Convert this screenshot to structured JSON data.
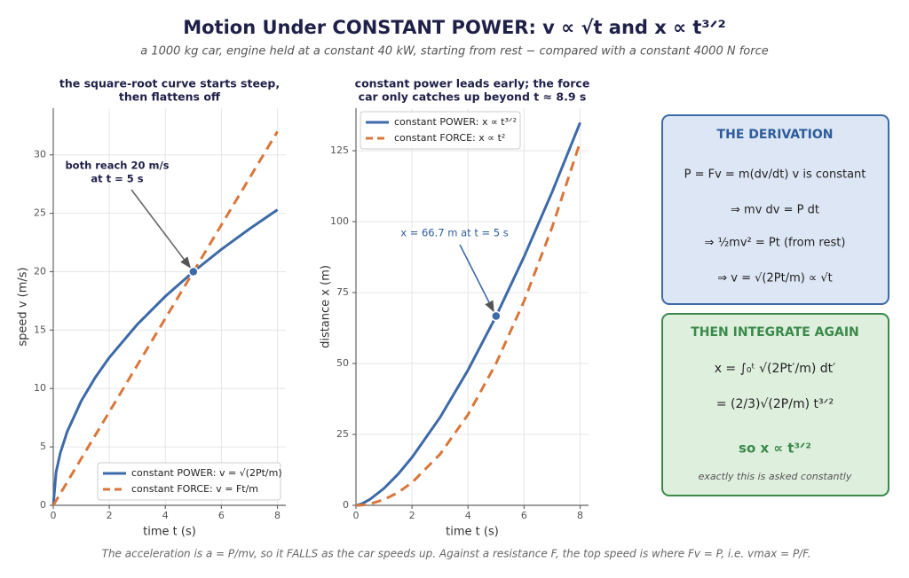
{
  "title": "Motion Under CONSTANT POWER:  v ∝ √t  and  x ∝ t³ᐟ²",
  "subtitle": "a 1000 kg car, engine held at a constant 40 kW, starting from rest − compared with a constant 4000 N force",
  "chart_data": [
    {
      "type": "line",
      "title": [
        "the square-root curve starts steep,",
        "then flattens off"
      ],
      "x_label": "time  t  (s)",
      "y_label": "speed  v  (m/s)",
      "x": [
        0,
        0.1,
        0.25,
        0.5,
        1,
        1.5,
        2,
        3,
        4,
        5,
        6,
        7,
        8
      ],
      "series": [
        {
          "name": "constant POWER:  v = √(2Pt/m)",
          "color": "#3d6aa8",
          "dash": false,
          "values": [
            0,
            2.83,
            4.47,
            6.32,
            8.94,
            10.95,
            12.65,
            15.49,
            17.89,
            20,
            21.91,
            23.66,
            25.3
          ]
        },
        {
          "name": "constant FORCE:  v = Ft/m",
          "color": "#d9773b",
          "dash": true,
          "values": [
            0,
            0.4,
            1,
            2,
            4,
            6,
            8,
            12,
            16,
            20,
            24,
            28,
            32
          ]
        }
      ],
      "point": {
        "x": 5,
        "y": 20
      },
      "annotation": [
        "both reach 20 m/s",
        "at t = 5 s"
      ],
      "xlim": [
        0,
        8.3
      ],
      "xticks": [
        0,
        2,
        4,
        6,
        8
      ],
      "ylim": [
        0,
        34
      ],
      "yticks": [
        0,
        5,
        10,
        15,
        20,
        25,
        30
      ],
      "grid": true,
      "legend": "lower right"
    },
    {
      "type": "line",
      "title": [
        "constant power leads early;  the force",
        "car only catches up beyond t ≈ 8.9 s"
      ],
      "x_label": "time  t  (s)",
      "y_label": "distance  x  (m)",
      "x": [
        0,
        0.1,
        0.25,
        0.5,
        1,
        1.5,
        2,
        3,
        4,
        5,
        6,
        7,
        8
      ],
      "series": [
        {
          "name": "constant POWER:  x ∝ t³ᐟ²",
          "color": "#3d6aa8",
          "dash": false,
          "values": [
            0,
            0.19,
            0.75,
            2.11,
            5.96,
            10.95,
            16.87,
            30.98,
            47.7,
            66.67,
            87.64,
            110.4,
            134.9
          ]
        },
        {
          "name": "constant FORCE:  x ∝ t²",
          "color": "#d9773b",
          "dash": true,
          "values": [
            0,
            0.02,
            0.125,
            0.5,
            2,
            4.5,
            8,
            18,
            32,
            50,
            72,
            98,
            128
          ]
        }
      ],
      "point": {
        "x": 5,
        "y": 66.7
      },
      "annotation": [
        "x = 66.7 m at t = 5 s"
      ],
      "xlim": [
        0,
        8.3
      ],
      "xticks": [
        0,
        2,
        4,
        6,
        8
      ],
      "ylim": [
        0,
        140
      ],
      "yticks": [
        0,
        25,
        50,
        75,
        100,
        125
      ],
      "grid": true,
      "legend": "upper left"
    }
  ],
  "derivation": {
    "title": "THE DERIVATION",
    "lines": [
      "P = Fv = m(dv/dt) v  is constant",
      "⇒  mv dv = P dt",
      "⇒  ½mv² = Pt  (from rest)",
      "⇒  v = √(2Pt/m)  ∝  √t"
    ]
  },
  "integrate": {
    "title": "THEN INTEGRATE AGAIN",
    "lines": [
      "x = ∫₀ᵗ √(2Pt′/m) dt′",
      "= (2/3)√(2P/m) t³ᐟ²"
    ],
    "conclusion": "so  x ∝ t³ᐟ²",
    "note": "exactly this is asked constantly"
  },
  "footnote": "The acceleration is a = P/mv, so it FALLS as the car speeds up.  Against a resistance F, the top speed is where Fv = P, i.e. vmax = P/F."
}
